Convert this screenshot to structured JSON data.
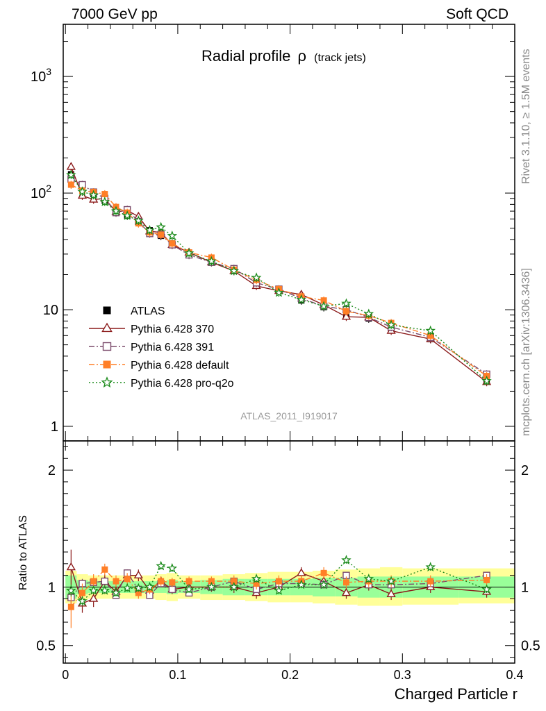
{
  "header": {
    "left": "7000 GeV pp",
    "right": "Soft QCD"
  },
  "side_text": {
    "top": "Rivet 3.1.10, ≥ 1.5M events",
    "bottom": "mcplots.cern.ch [arXiv:1306.3436]"
  },
  "chart_data": {
    "type": "line",
    "title": "Radial profile",
    "title_symbol": "ρ",
    "title_suffix": "(track jets)",
    "watermark": "ATLAS_2011_I919017",
    "xlabel": "Charged Particle r",
    "ylabel_ratio": "Ratio to ATLAS",
    "xlim": [
      -0.002,
      0.4
    ],
    "ylim_main": [
      0.75,
      2800
    ],
    "yscale_main": "log",
    "ylim_ratio": [
      0.35,
      2.25
    ],
    "grid": false,
    "legend_position": "bottom-left",
    "x_ticks": [
      {
        "v": 0,
        "label": "0"
      },
      {
        "v": 0.1,
        "label": "0.1"
      },
      {
        "v": 0.2,
        "label": "0.2"
      },
      {
        "v": 0.3,
        "label": "0.3"
      },
      {
        "v": 0.4,
        "label": "0.4"
      }
    ],
    "y_ticks_main": [
      {
        "v": 1,
        "label": "1"
      },
      {
        "v": 10,
        "label": "10"
      },
      {
        "v": 100,
        "label": "10",
        "exp": "2"
      },
      {
        "v": 1000,
        "label": "10",
        "exp": "3"
      }
    ],
    "y_ticks_ratio": [
      {
        "v": 0.5,
        "label": "0.5"
      },
      {
        "v": 1,
        "label": "1"
      },
      {
        "v": 2,
        "label": "2"
      }
    ],
    "x": [
      0.005,
      0.015,
      0.025,
      0.035,
      0.045,
      0.055,
      0.065,
      0.075,
      0.085,
      0.095,
      0.11,
      0.13,
      0.15,
      0.17,
      0.19,
      0.21,
      0.23,
      0.25,
      0.27,
      0.29,
      0.325,
      0.375
    ],
    "x_edges": [
      0,
      0.01,
      0.02,
      0.03,
      0.04,
      0.05,
      0.06,
      0.07,
      0.08,
      0.09,
      0.1,
      0.12,
      0.14,
      0.16,
      0.18,
      0.2,
      0.22,
      0.24,
      0.26,
      0.28,
      0.3,
      0.35,
      0.4
    ],
    "band_inner": [
      1.1,
      1.06,
      1.05,
      1.05,
      1.05,
      1.05,
      1.05,
      1.05,
      1.05,
      1.06,
      1.05,
      1.06,
      1.07,
      1.07,
      1.07,
      1.07,
      1.08,
      1.08,
      1.09,
      1.09,
      1.09,
      1.09
    ],
    "band_outer": [
      1.14,
      1.11,
      1.1,
      1.1,
      1.1,
      1.1,
      1.1,
      1.1,
      1.11,
      1.12,
      1.1,
      1.1,
      1.11,
      1.12,
      1.13,
      1.13,
      1.14,
      1.15,
      1.16,
      1.17,
      1.16,
      1.16
    ],
    "band_inner_low": [
      0.9,
      0.94,
      0.95,
      0.95,
      0.95,
      0.95,
      0.95,
      0.95,
      0.95,
      0.94,
      0.95,
      0.94,
      0.93,
      0.93,
      0.93,
      0.93,
      0.92,
      0.92,
      0.91,
      0.91,
      0.91,
      0.91
    ],
    "band_outer_low": [
      0.86,
      0.89,
      0.9,
      0.9,
      0.9,
      0.9,
      0.9,
      0.9,
      0.89,
      0.88,
      0.9,
      0.89,
      0.89,
      0.88,
      0.87,
      0.87,
      0.86,
      0.85,
      0.84,
      0.84,
      0.85,
      0.86
    ],
    "series": [
      {
        "name": "ATLAS",
        "color": "#000000",
        "marker": "filled-square",
        "line": "none",
        "values": [
          145,
          115,
          98,
          86,
          73,
          64,
          58,
          48,
          43,
          37,
          31,
          26,
          21.5,
          17.5,
          14.5,
          12.0,
          10.5,
          9.2,
          8.4,
          7.0,
          5.6,
          2.5
        ],
        "ratio": [
          1,
          1,
          1,
          1,
          1,
          1,
          1,
          1,
          1,
          1,
          1,
          1,
          1,
          1,
          1,
          1,
          1,
          1,
          1,
          1,
          1,
          1
        ],
        "ratio_err": [
          0,
          0,
          0,
          0,
          0,
          0,
          0,
          0,
          0,
          0,
          0,
          0,
          0,
          0,
          0,
          0,
          0,
          0,
          0,
          0,
          0,
          0
        ]
      },
      {
        "name": "Pythia 6.428 370",
        "color": "#8b1a1a",
        "marker": "open-triangle",
        "line": "solid",
        "values": [
          168,
          95,
          88,
          90,
          69,
          71,
          63,
          47,
          46,
          36,
          31,
          25.5,
          21.5,
          16.0,
          14.5,
          13.5,
          11.0,
          8.7,
          8.6,
          6.6,
          5.6,
          2.4
        ],
        "ratio": [
          1.17,
          0.86,
          0.9,
          1.05,
          0.96,
          1.1,
          1.1,
          0.97,
          1.05,
          0.98,
          1.0,
          1.0,
          1.0,
          0.95,
          1.0,
          1.12,
          1.05,
          0.95,
          1.02,
          0.94,
          1.0,
          0.96
        ],
        "ratio_err": [
          0.15,
          0.08,
          0.07,
          0.06,
          0.05,
          0.05,
          0.05,
          0.04,
          0.04,
          0.04,
          0.04,
          0.04,
          0.05,
          0.05,
          0.05,
          0.05,
          0.05,
          0.05,
          0.05,
          0.05,
          0.05,
          0.05
        ]
      },
      {
        "name": "Pythia 6.428 391",
        "color": "#7a4a6a",
        "marker": "open-square",
        "line": "dashdot",
        "values": [
          132,
          118,
          102,
          90,
          68,
          72,
          57,
          45,
          44,
          36,
          29.5,
          25.5,
          22.5,
          17.0,
          15.0,
          12.5,
          10.7,
          10.0,
          8.6,
          7.1,
          5.8,
          2.8
        ],
        "ratio": [
          0.91,
          1.03,
          1.04,
          1.05,
          0.93,
          1.12,
          0.98,
          0.93,
          1.03,
          0.98,
          0.95,
          1.0,
          1.05,
          0.98,
          1.03,
          1.03,
          1.02,
          1.1,
          1.02,
          1.02,
          1.03,
          1.1
        ],
        "ratio_err": [
          0.06,
          0.04,
          0.03,
          0.03,
          0.03,
          0.03,
          0.03,
          0.03,
          0.03,
          0.03,
          0.03,
          0.03,
          0.03,
          0.03,
          0.03,
          0.03,
          0.03,
          0.03,
          0.03,
          0.03,
          0.03,
          0.03
        ]
      },
      {
        "name": "Pythia 6.428 default",
        "color": "#ff7f27",
        "marker": "filled-square",
        "line": "dashdot",
        "values": [
          118,
          105,
          102,
          98,
          76,
          68,
          55,
          46,
          44,
          37,
          31,
          28,
          22,
          18,
          15,
          13,
          12,
          9.7,
          8.9,
          7.7,
          6.0,
          2.7
        ],
        "ratio": [
          0.83,
          0.95,
          1.05,
          1.15,
          1.05,
          1.07,
          0.95,
          0.98,
          1.05,
          1.04,
          1.05,
          1.05,
          1.05,
          1.03,
          1.05,
          1.05,
          1.12,
          1.04,
          1.05,
          1.05,
          1.05,
          1.06
        ],
        "ratio_err": [
          0.18,
          0.08,
          0.06,
          0.05,
          0.05,
          0.05,
          0.05,
          0.04,
          0.04,
          0.04,
          0.04,
          0.04,
          0.05,
          0.05,
          0.05,
          0.05,
          0.05,
          0.05,
          0.05,
          0.05,
          0.05,
          0.05
        ]
      },
      {
        "name": "Pythia 6.428 pro-q2o",
        "color": "#1a8a1a",
        "marker": "open-star",
        "line": "dotted",
        "values": [
          143,
          103,
          96,
          84,
          70,
          64,
          58,
          48,
          51,
          43,
          30.5,
          26,
          21.5,
          18.8,
          14.0,
          12.2,
          10.7,
          11.3,
          9.2,
          7.4,
          6.6,
          2.45
        ],
        "ratio": [
          0.97,
          0.88,
          0.97,
          0.97,
          0.95,
          0.99,
          0.99,
          1.0,
          1.18,
          1.16,
          0.98,
          1.0,
          1.0,
          1.07,
          0.97,
          1.02,
          1.02,
          1.23,
          1.07,
          1.05,
          1.17,
          0.98
        ],
        "ratio_err": [
          0.05,
          0.04,
          0.03,
          0.03,
          0.03,
          0.03,
          0.03,
          0.03,
          0.03,
          0.03,
          0.03,
          0.03,
          0.03,
          0.03,
          0.03,
          0.03,
          0.03,
          0.03,
          0.03,
          0.03,
          0.03,
          0.03
        ]
      }
    ]
  }
}
